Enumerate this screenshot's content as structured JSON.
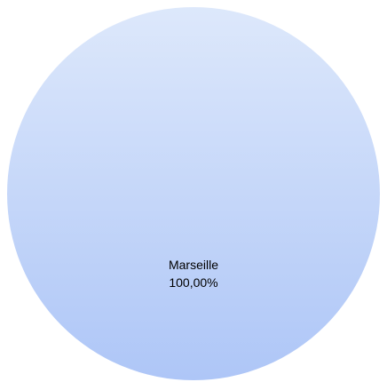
{
  "chart_data": {
    "type": "pie",
    "slices": [
      {
        "label": "Marseille",
        "value": 100,
        "percent_label": "100,00%",
        "color_top": "#dde8fb",
        "color_bottom": "#aec6f7"
      }
    ],
    "title": "",
    "legend": "none"
  }
}
